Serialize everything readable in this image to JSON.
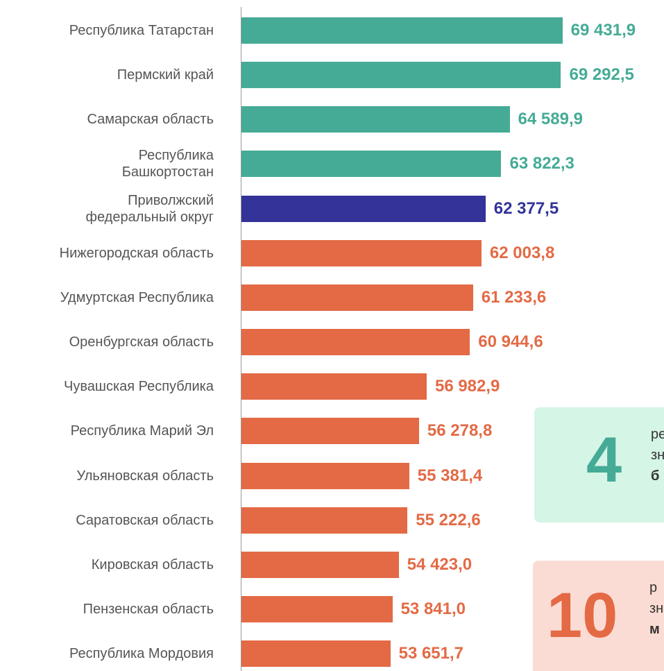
{
  "chart_data": {
    "type": "barh",
    "categories": [
      "Республика Татарстан",
      "Пермский край",
      "Самарская область",
      "Республика\nБашкортостан",
      "Приволжский\nфедеральный округ",
      "Нижегородская область",
      "Удмуртская Республика",
      "Оренбургская область",
      "Чувашская Республика",
      "Республика Марий Эл",
      "Ульяновская область",
      "Саратовская область",
      "Кировская область",
      "Пензенская область",
      "Республика Мордовия"
    ],
    "values": [
      69431.9,
      69292.5,
      64589.9,
      63822.3,
      62377.5,
      62003.8,
      61233.6,
      60944.6,
      56982.9,
      56278.8,
      55381.4,
      55222.6,
      54423.0,
      53841.0,
      53651.7
    ],
    "value_labels": [
      "69 431,9",
      "69 292,5",
      "64 589,9",
      "63 822,3",
      "62 377,5",
      "62 003,8",
      "61 233,6",
      "60 944,6",
      "56 982,9",
      "56 278,8",
      "55 381,4",
      "55 222,6",
      "54 423,0",
      "53 841,0",
      "53 651,7"
    ],
    "colors": [
      "#45ab96",
      "#45ab96",
      "#45ab96",
      "#45ab96",
      "#333399",
      "#e36a45",
      "#e36a45",
      "#e36a45",
      "#e36a45",
      "#e36a45",
      "#e36a45",
      "#e36a45",
      "#e36a45",
      "#e36a45",
      "#e36a45"
    ],
    "xlim": [
      40000,
      78740
    ],
    "callouts": [
      {
        "number": "4",
        "lines": [
          "ре",
          "зн",
          "б"
        ],
        "background": "#d5f5e6",
        "color": "#45ab96"
      },
      {
        "number": "10",
        "lines": [
          "р",
          "зн",
          "м"
        ],
        "background": "#fbdcd4",
        "color": "#e36a45"
      }
    ]
  }
}
